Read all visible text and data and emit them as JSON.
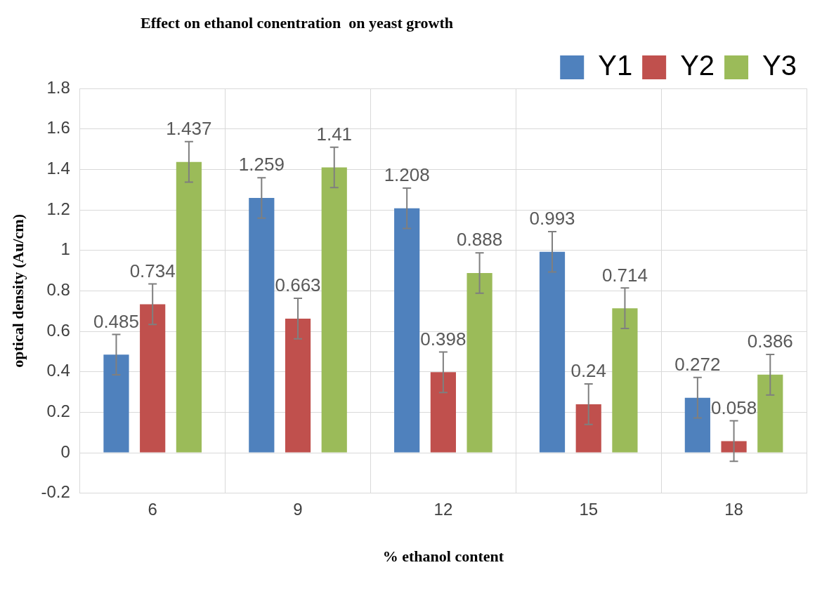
{
  "chart_data": {
    "type": "bar",
    "title": "Effect on ethanol conentration  on yeast growth",
    "xlabel": "% ethanol content",
    "ylabel": "optical density (Au/cm)",
    "categories": [
      "6",
      "9",
      "12",
      "15",
      "18"
    ],
    "series": [
      {
        "name": "Y1",
        "color": "#4f81bd",
        "values": [
          0.485,
          1.259,
          1.208,
          0.993,
          0.272
        ],
        "errors": [
          0.1,
          0.1,
          0.1,
          0.1,
          0.1
        ]
      },
      {
        "name": "Y2",
        "color": "#c0504d",
        "values": [
          0.734,
          0.663,
          0.398,
          0.24,
          0.058
        ],
        "errors": [
          0.1,
          0.1,
          0.1,
          0.1,
          0.1
        ]
      },
      {
        "name": "Y3",
        "color": "#9bbb59",
        "values": [
          1.437,
          1.41,
          0.888,
          0.714,
          0.386
        ],
        "errors": [
          0.1,
          0.1,
          0.1,
          0.1,
          0.1
        ]
      }
    ],
    "ylim": [
      -0.2,
      1.8
    ],
    "yticks": [
      -0.2,
      0,
      0.2,
      0.4,
      0.6,
      0.8,
      1,
      1.2,
      1.4,
      1.6,
      1.8
    ],
    "grid": true,
    "legend": "top right",
    "data_labels": true
  }
}
